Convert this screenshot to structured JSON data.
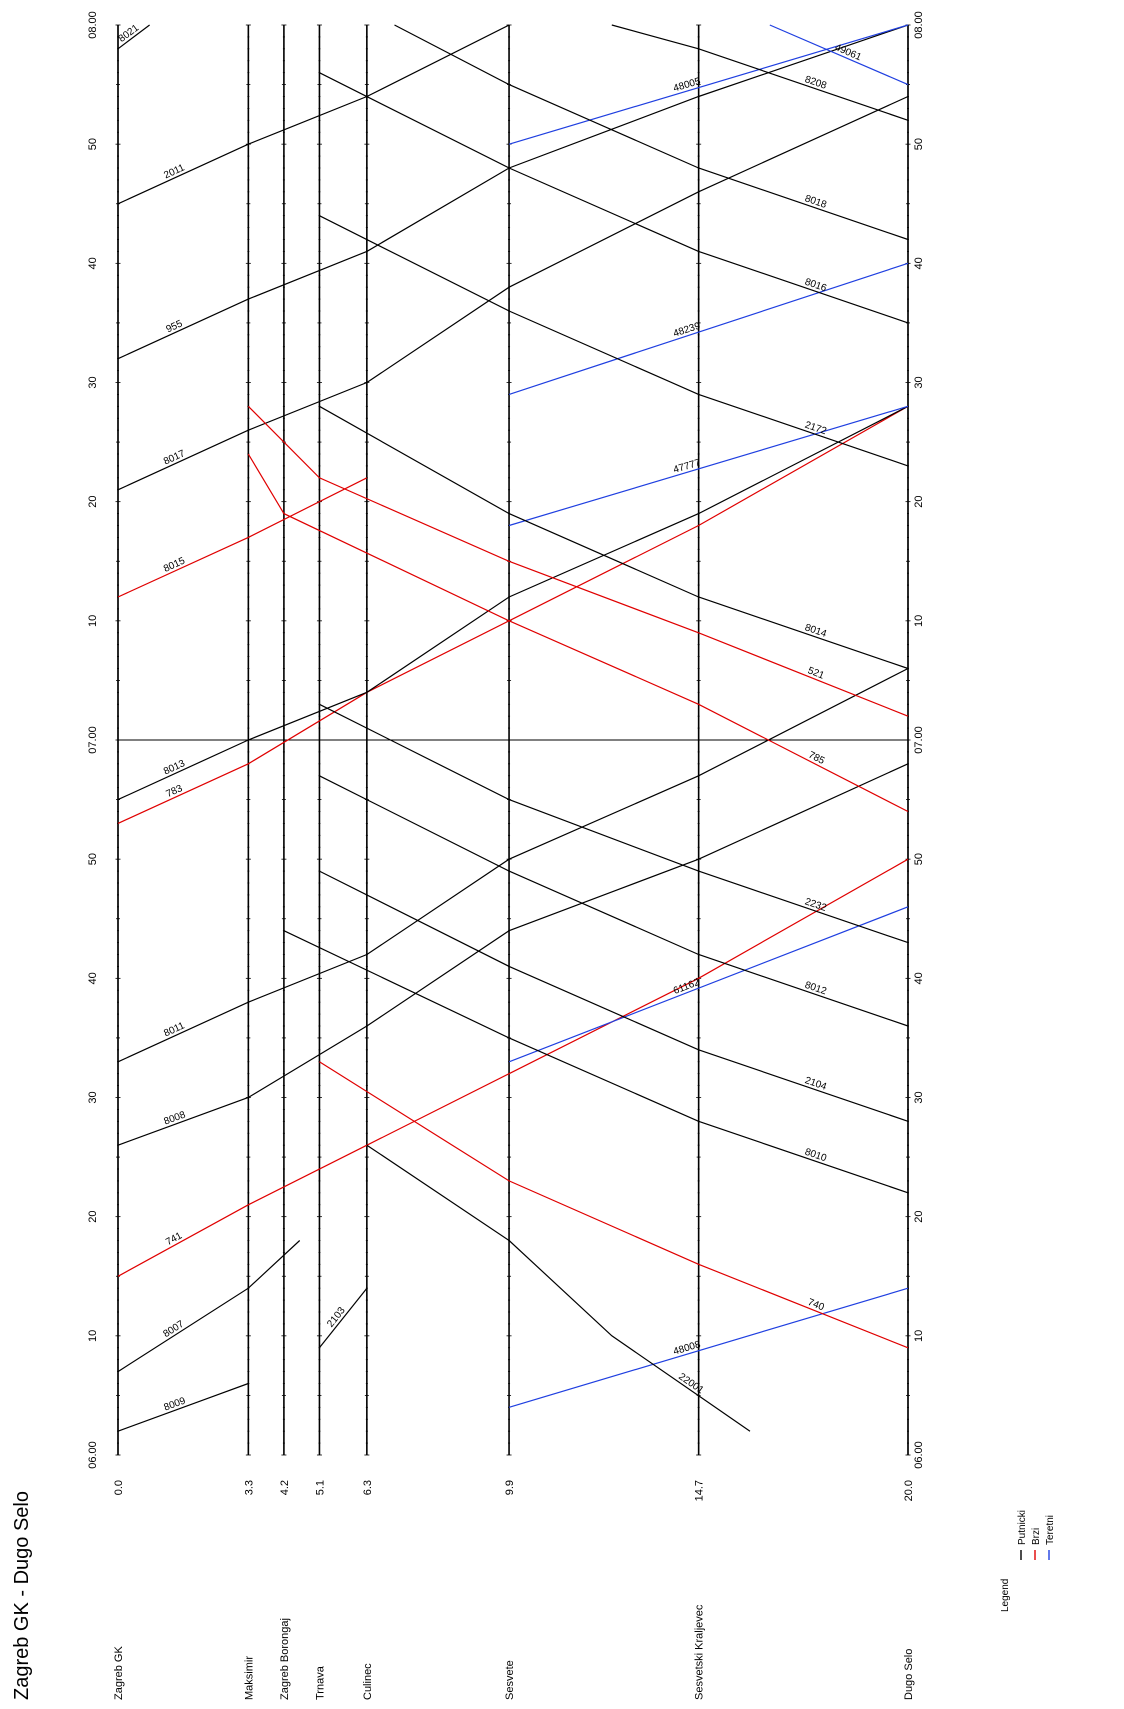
{
  "title": "Zagreb GK - Dugo Selo",
  "legend": {
    "label": "Legend",
    "items": [
      {
        "name": "Putnicki",
        "color": "#000000"
      },
      {
        "name": "Brzi",
        "color": "#e00000"
      },
      {
        "name": "Teretni",
        "color": "#1f3fe0"
      }
    ]
  },
  "stations": [
    {
      "name": "Zagreb GK",
      "km": "0.0",
      "km_value": 0.0
    },
    {
      "name": "Maksimir",
      "km": "3.3",
      "km_value": 3.3
    },
    {
      "name": "Zagreb Borongaj",
      "km": "4.2",
      "km_value": 4.2
    },
    {
      "name": "Trnava",
      "km": "5.1",
      "km_value": 5.1
    },
    {
      "name": "Culinec",
      "km": "6.3",
      "km_value": 6.3
    },
    {
      "name": "Sesvete",
      "km": "9.9",
      "km_value": 9.9
    },
    {
      "name": "Sesvetski Kraljevec",
      "km": "14.7",
      "km_value": 14.7
    },
    {
      "name": "Dugo Selo",
      "km": "20.0",
      "km_value": 20.0
    }
  ],
  "time_ticks": [
    {
      "label": "06.00",
      "minutes": 0
    },
    {
      "label": "10",
      "minutes": 10
    },
    {
      "label": "20",
      "minutes": 20
    },
    {
      "label": "30",
      "minutes": 30
    },
    {
      "label": "40",
      "minutes": 40
    },
    {
      "label": "50",
      "minutes": 50
    },
    {
      "label": "07.00",
      "minutes": 60
    },
    {
      "label": "10",
      "minutes": 70
    },
    {
      "label": "20",
      "minutes": 80
    },
    {
      "label": "30",
      "minutes": 90
    },
    {
      "label": "40",
      "minutes": 100
    },
    {
      "label": "50",
      "minutes": 110
    },
    {
      "label": "08.00",
      "minutes": 120
    }
  ],
  "chart_data": {
    "type": "line",
    "title": "Zagreb GK - Dugo Selo",
    "x_axis": "time (minutes after 06:00)",
    "y_axis": "km",
    "xlim": [
      0,
      120
    ],
    "ylim": [
      0,
      20
    ],
    "series": [
      {
        "name": "8009",
        "category": "Putnicki",
        "points": [
          [
            2,
            0
          ],
          [
            6,
            3.3
          ]
        ]
      },
      {
        "name": "8007",
        "category": "Putnicki",
        "points": [
          [
            7,
            0
          ],
          [
            14,
            3.3
          ],
          [
            18,
            4.6
          ]
        ]
      },
      {
        "name": "2103",
        "category": "Putnicki",
        "points": [
          [
            9,
            5.1
          ],
          [
            14,
            6.3
          ]
        ]
      },
      {
        "name": "741",
        "category": "Brzi",
        "points": [
          [
            15,
            0
          ],
          [
            21,
            3.3
          ],
          [
            26,
            6.3
          ],
          [
            32,
            9.9
          ],
          [
            40,
            14.7
          ],
          [
            50,
            20
          ]
        ]
      },
      {
        "name": "8008",
        "category": "Putnicki",
        "points": [
          [
            26,
            0
          ],
          [
            30,
            3.3
          ],
          [
            36,
            6.3
          ],
          [
            44,
            9.9
          ],
          [
            50,
            14.7
          ],
          [
            58,
            20
          ]
        ]
      },
      {
        "name": "8011",
        "category": "Putnicki",
        "points": [
          [
            33,
            0
          ],
          [
            38,
            3.3
          ],
          [
            42,
            6.3
          ],
          [
            50,
            9.9
          ],
          [
            57,
            14.7
          ],
          [
            66,
            20
          ]
        ]
      },
      {
        "name": "783",
        "category": "Brzi",
        "points": [
          [
            53,
            0
          ],
          [
            58,
            3.3
          ],
          [
            64,
            6.3
          ],
          [
            70,
            9.9
          ],
          [
            78,
            14.7
          ],
          [
            88,
            20
          ]
        ]
      },
      {
        "name": "8013",
        "category": "Putnicki",
        "points": [
          [
            55,
            0
          ],
          [
            60,
            3.3
          ],
          [
            64,
            6.3
          ],
          [
            72,
            9.9
          ],
          [
            79,
            14.7
          ],
          [
            88,
            20
          ]
        ]
      },
      {
        "name": "8015",
        "category": "Brzi",
        "points": [
          [
            72,
            0
          ],
          [
            77,
            3.3
          ],
          [
            82,
            6.3
          ]
        ]
      },
      {
        "name": "8017",
        "category": "Putnicki",
        "points": [
          [
            81,
            0
          ],
          [
            86,
            3.3
          ],
          [
            90,
            6.3
          ],
          [
            98,
            9.9
          ],
          [
            106,
            14.7
          ],
          [
            114,
            20
          ]
        ]
      },
      {
        "name": "955",
        "category": "Putnicki",
        "points": [
          [
            92,
            0
          ],
          [
            97,
            3.3
          ],
          [
            101,
            6.3
          ],
          [
            108,
            9.9
          ],
          [
            114,
            14.7
          ],
          [
            120,
            20
          ]
        ]
      },
      {
        "name": "2011",
        "category": "Putnicki",
        "points": [
          [
            105,
            0
          ],
          [
            110,
            3.3
          ],
          [
            114,
            6.3
          ],
          [
            120,
            9.9
          ]
        ]
      },
      {
        "name": "8021",
        "category": "Putnicki",
        "points": [
          [
            118,
            0
          ],
          [
            120,
            0.8
          ]
        ]
      },
      {
        "name": "48008",
        "category": "Teretni",
        "points": [
          [
            4,
            9.9
          ],
          [
            14,
            20
          ]
        ]
      },
      {
        "name": "61162",
        "category": "Teretni",
        "points": [
          [
            33,
            9.9
          ],
          [
            46,
            20
          ]
        ]
      },
      {
        "name": "47777",
        "category": "Teretni",
        "points": [
          [
            78,
            9.9
          ],
          [
            88,
            20
          ]
        ]
      },
      {
        "name": "48239",
        "category": "Teretni",
        "points": [
          [
            89,
            9.9
          ],
          [
            100,
            20
          ]
        ]
      },
      {
        "name": "48005",
        "category": "Teretni",
        "points": [
          [
            110,
            9.9
          ],
          [
            120,
            20
          ]
        ]
      },
      {
        "name": "22001",
        "category": "Putnicki",
        "points": [
          [
            2,
            16
          ],
          [
            10,
            12.5
          ],
          [
            18,
            9.9
          ],
          [
            26,
            6.3
          ]
        ]
      },
      {
        "name": "740",
        "category": "Brzi",
        "points": [
          [
            9,
            20
          ],
          [
            16,
            14.7
          ],
          [
            23,
            9.9
          ],
          [
            33,
            5.1
          ]
        ]
      },
      {
        "name": "8010",
        "category": "Putnicki",
        "points": [
          [
            22,
            20
          ],
          [
            28,
            14.7
          ],
          [
            35,
            9.9
          ],
          [
            44,
            4.2
          ]
        ]
      },
      {
        "name": "2104",
        "category": "Putnicki",
        "points": [
          [
            28,
            20
          ],
          [
            34,
            14.7
          ],
          [
            41,
            9.9
          ],
          [
            49,
            5.1
          ]
        ]
      },
      {
        "name": "8012",
        "category": "Putnicki",
        "points": [
          [
            36,
            20
          ],
          [
            42,
            14.7
          ],
          [
            49,
            9.9
          ],
          [
            57,
            5.1
          ]
        ]
      },
      {
        "name": "2232",
        "category": "Putnicki",
        "points": [
          [
            43,
            20
          ],
          [
            49,
            14.7
          ],
          [
            55,
            9.9
          ],
          [
            63,
            5.1
          ]
        ]
      },
      {
        "name": "785",
        "category": "Brzi",
        "points": [
          [
            54,
            20
          ],
          [
            63,
            14.7
          ],
          [
            70,
            9.9
          ],
          [
            79,
            4.2
          ],
          [
            84,
            3.3
          ]
        ]
      },
      {
        "name": "521",
        "category": "Brzi",
        "points": [
          [
            62,
            20
          ],
          [
            69,
            14.7
          ],
          [
            75,
            9.9
          ],
          [
            82,
            5.1
          ],
          [
            88,
            3.3
          ]
        ]
      },
      {
        "name": "8014",
        "category": "Putnicki",
        "points": [
          [
            66,
            20
          ],
          [
            72,
            14.7
          ],
          [
            79,
            9.9
          ],
          [
            88,
            5.1
          ]
        ]
      },
      {
        "name": "2172",
        "category": "Putnicki",
        "points": [
          [
            83,
            20
          ],
          [
            89,
            14.7
          ],
          [
            96,
            9.9
          ],
          [
            104,
            5.1
          ]
        ]
      },
      {
        "name": "8016",
        "category": "Putnicki",
        "points": [
          [
            95,
            20
          ],
          [
            101,
            14.7
          ],
          [
            108,
            9.9
          ],
          [
            116,
            5.1
          ]
        ]
      },
      {
        "name": "8018",
        "category": "Putnicki",
        "points": [
          [
            102,
            20
          ],
          [
            108,
            14.7
          ],
          [
            115,
            9.9
          ],
          [
            120,
            7
          ]
        ]
      },
      {
        "name": "8208",
        "category": "Putnicki",
        "points": [
          [
            112,
            20
          ],
          [
            118,
            14.7
          ],
          [
            120,
            12.5
          ]
        ]
      },
      {
        "name": "49061",
        "category": "Teretni",
        "points": [
          [
            115,
            20
          ],
          [
            120,
            16.5
          ]
        ]
      }
    ]
  }
}
